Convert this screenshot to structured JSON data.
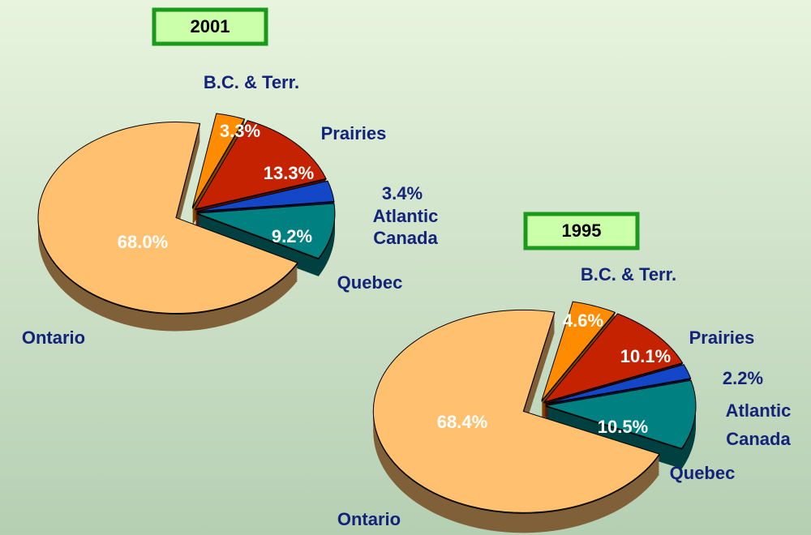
{
  "chart_data": [
    {
      "type": "pie",
      "title": "2001",
      "categories": [
        "B.C. & Terr.",
        "Prairies",
        "Atlantic Canada",
        "Quebec",
        "Ontario"
      ],
      "values": [
        3.3,
        13.3,
        3.4,
        9.2,
        68.0
      ],
      "value_labels": [
        "3.3%",
        "13.3%",
        "3.4%",
        "9.2%",
        "68.0%"
      ],
      "colors": [
        "#ff8c00",
        "#c42200",
        "#1446c8",
        "#008080",
        "#ffc070"
      ]
    },
    {
      "type": "pie",
      "title": "1995",
      "categories": [
        "B.C. & Terr.",
        "Prairies",
        "Atlantic Canada",
        "Quebec",
        "Ontario"
      ],
      "values": [
        4.6,
        10.1,
        2.2,
        10.5,
        68.4
      ],
      "value_labels": [
        "4.6%",
        "10.1%",
        "2.2%",
        "10.5%",
        "68.4%"
      ],
      "colors": [
        "#ff8c00",
        "#c42200",
        "#1446c8",
        "#008080",
        "#ffc070"
      ]
    }
  ]
}
